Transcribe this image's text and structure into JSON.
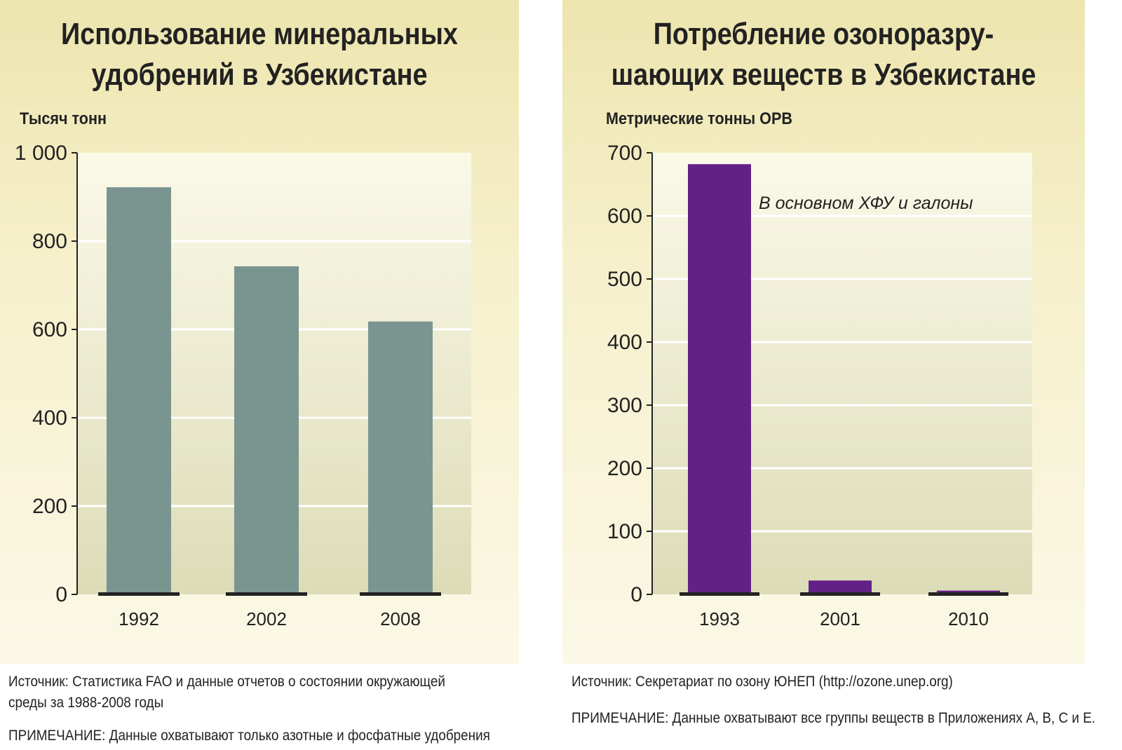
{
  "chart_data": [
    {
      "type": "bar",
      "title": "Использование минеральных удобрений в Узбекистане",
      "ylabel": "Тысяч тонн",
      "categories": [
        "1992",
        "2002",
        "2008"
      ],
      "values": [
        922,
        743,
        618
      ],
      "ylim": [
        0,
        1000
      ],
      "yticks": [
        0,
        200,
        400,
        600,
        800,
        1000
      ],
      "ytick_labels": [
        "0",
        "200",
        "400",
        "600",
        "800",
        "1 000"
      ],
      "bar_color": "#7a9490",
      "grid": true,
      "source": "Источник: Статистика FAO и данные отчетов о состоянии окружающей среды за 1988-2008 годы",
      "note": "ПРИМЕЧАНИЕ: Данные охватывают только азотные и фосфатные удобрения"
    },
    {
      "type": "bar",
      "title": "Потребление  озоноразру-шающих веществ в Узбекистане",
      "ylabel": "Метрические тонны ОРВ",
      "categories": [
        "1993",
        "2001",
        "2010"
      ],
      "values": [
        682,
        22,
        6
      ],
      "ylim": [
        0,
        700
      ],
      "yticks": [
        0,
        100,
        200,
        300,
        400,
        500,
        600,
        700
      ],
      "ytick_labels": [
        "0",
        "100",
        "200",
        "300",
        "400",
        "500",
        "600",
        "700"
      ],
      "bar_color": "#622187",
      "grid": true,
      "annotation": "В основном ХФУ и галоны",
      "source": "Источник: Секретариат по озону ЮНЕП (http://ozone.unep.org)",
      "note": "ПРИМЕЧАНИЕ: Данные охватывают все группы веществ в Приложениях A, B, C и E."
    }
  ],
  "titles": {
    "left_1": "Использование минеральных",
    "left_2": "удобрений в Узбекистане",
    "right_1": "Потребление  озоноразру-",
    "right_2": "шающих веществ в Узбекистане"
  },
  "footer": {
    "left_source_1": "Источник: Статистика FAO и данные отчетов о состоянии окружающей",
    "left_source_2": "среды за 1988-2008 годы"
  }
}
